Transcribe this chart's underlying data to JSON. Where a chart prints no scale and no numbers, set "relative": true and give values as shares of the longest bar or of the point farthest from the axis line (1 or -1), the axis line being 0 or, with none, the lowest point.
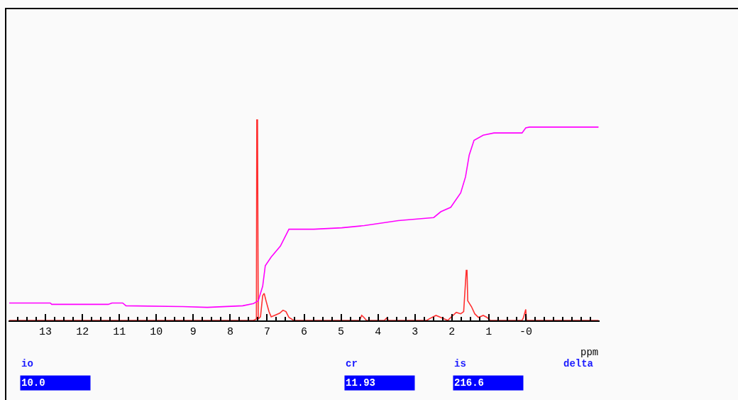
{
  "chart_data": {
    "type": "line",
    "relative": true,
    "xlabel": "ppm",
    "xlim": [
      14,
      -2
    ],
    "xticks": [
      13,
      12,
      11,
      10,
      9,
      8,
      7,
      6,
      5,
      4,
      3,
      2,
      1,
      {
        "value": 0,
        "label": "-0"
      }
    ],
    "grid": false,
    "tick_labels": "x",
    "marker": "none",
    "line_style": "solid",
    "annotations": [
      "io",
      "10.0",
      "cr",
      "11.93",
      "is",
      "216.6",
      "delta"
    ],
    "series": [
      {
        "color": "#ff3030",
        "x": [
          13.98,
          7.37,
          7.29,
          7.28,
          7.26,
          7.24,
          7.18,
          7.12,
          7.08,
          7.03,
          6.95,
          6.89,
          6.8,
          6.66,
          6.57,
          6.49,
          6.41,
          6.28,
          4.5,
          4.44,
          4.38,
          4.31,
          3.83,
          3.77,
          3.71,
          2.68,
          2.58,
          2.43,
          2.3,
          2.11,
          2.01,
          1.88,
          1.76,
          1.68,
          1.61,
          1.59,
          1.57,
          1.47,
          1.38,
          1.28,
          1.15,
          1.05,
          0.96,
          0.1,
          0.06,
          0,
          -0.02,
          -1.97
        ],
        "values": [
          0,
          0,
          0.007,
          1,
          1,
          0.007,
          0.018,
          0.124,
          0.135,
          0.098,
          0.044,
          0.018,
          0.025,
          0.036,
          0.051,
          0.044,
          0.015,
          0,
          0,
          0.025,
          0.015,
          0,
          0,
          0.011,
          0,
          0,
          0.011,
          0.025,
          0.015,
          0,
          0.018,
          0.04,
          0.033,
          0.044,
          0.25,
          0.25,
          0.098,
          0.069,
          0.033,
          0.015,
          0.025,
          0.015,
          0,
          0,
          0.015,
          0.055,
          0,
          0
        ]
      },
      {
        "color": "#ff00ff",
        "x": [
          13.98,
          12.87,
          12.83,
          11.3,
          11.2,
          10.91,
          10.82,
          9.29,
          8.62,
          7.66,
          7.37,
          7.24,
          7.12,
          7.05,
          6.89,
          6.64,
          6.41,
          5.74,
          4.98,
          4.37,
          3.45,
          2.49,
          2.3,
          2.03,
          1.76,
          1.63,
          1.53,
          1.4,
          1.15,
          0.86,
          0.1,
          0,
          -0.1,
          -1.97
        ],
        "values": [
          0.087,
          0.087,
          0.08,
          0.08,
          0.087,
          0.087,
          0.073,
          0.069,
          0.065,
          0.073,
          0.084,
          0.098,
          0.171,
          0.273,
          0.316,
          0.371,
          0.455,
          0.455,
          0.462,
          0.473,
          0.498,
          0.513,
          0.542,
          0.564,
          0.636,
          0.716,
          0.825,
          0.898,
          0.924,
          0.935,
          0.935,
          0.96,
          0.964,
          0.964
        ]
      }
    ]
  }
}
